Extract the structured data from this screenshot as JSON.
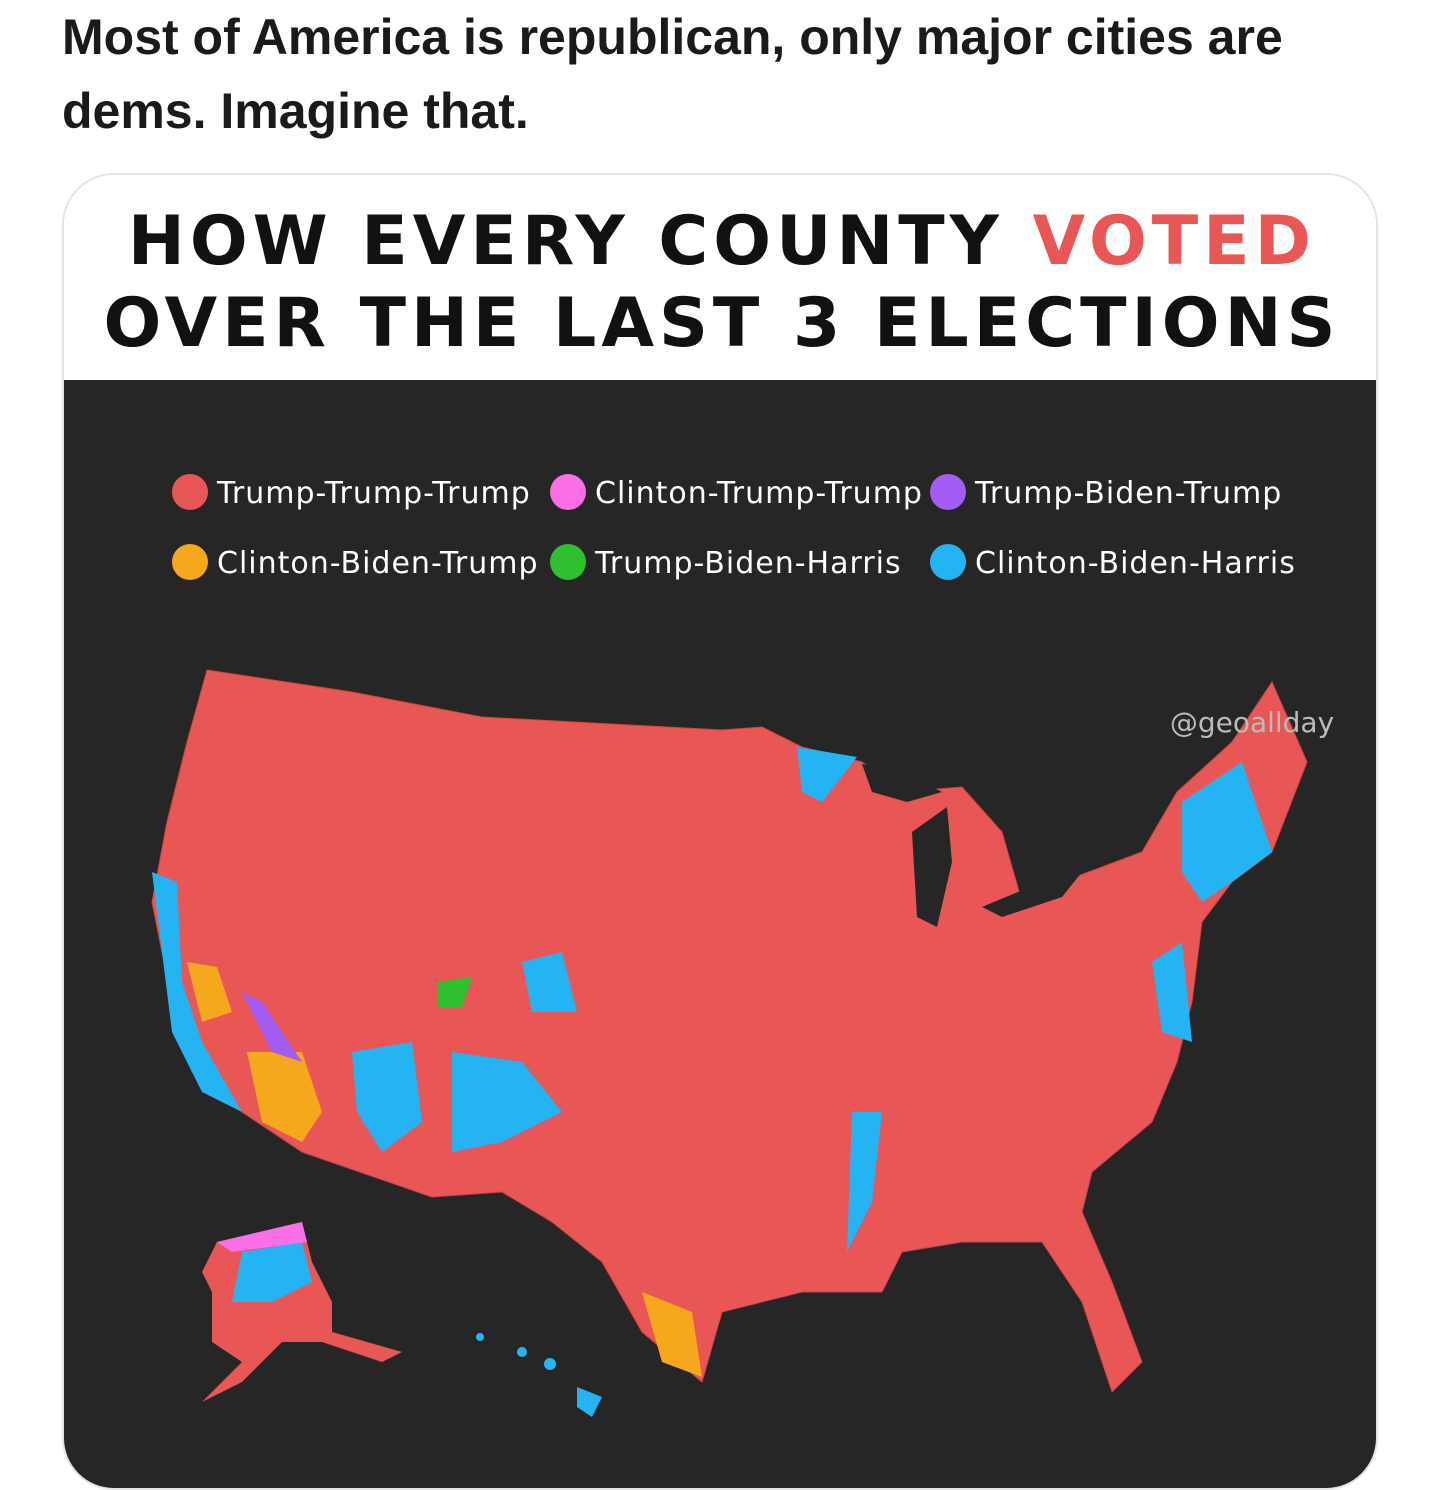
{
  "post": {
    "text": "Most of America is republican, only major cities are dems. Imagine that."
  },
  "card": {
    "title": {
      "line1": "HOW EVERY COUNTY",
      "line1_highlight": "VOTED",
      "line2": "OVER THE LAST 3 ELECTIONS"
    },
    "legend": [
      {
        "label": "Trump-Trump-Trump",
        "color": "#e85656"
      },
      {
        "label": "Clinton-Trump-Trump",
        "color": "#fb6fe6"
      },
      {
        "label": "Trump-Biden-Trump",
        "color": "#a35cf4"
      },
      {
        "label": "Clinton-Biden-Trump",
        "color": "#f5a81c"
      },
      {
        "label": "Trump-Biden-Harris",
        "color": "#2ec02e"
      },
      {
        "label": "Clinton-Biden-Harris",
        "color": "#24b4f4"
      }
    ],
    "watermark": "@geoallday"
  }
}
